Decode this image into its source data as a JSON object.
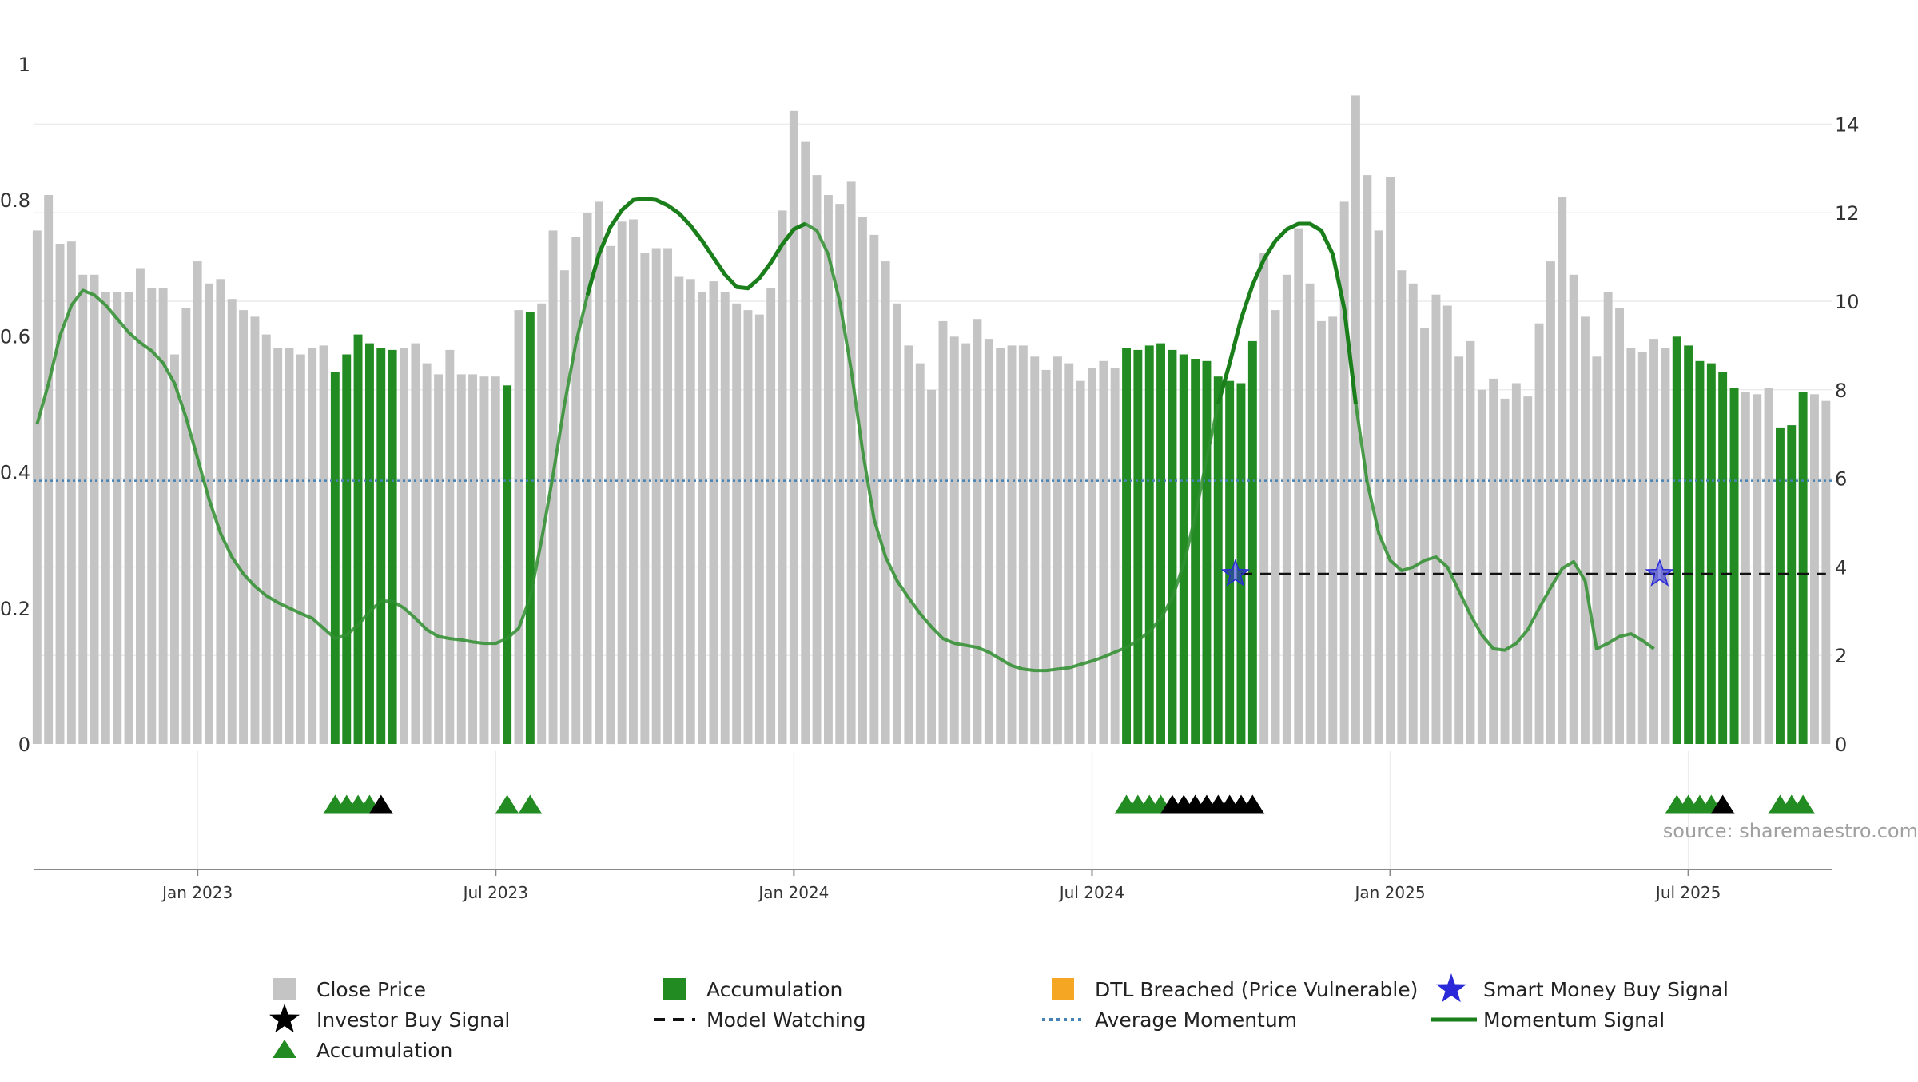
{
  "chart_data": {
    "type": "bar",
    "title": "",
    "source": "source: sharemaestro.com",
    "colors": {
      "close": "#c4c4c4",
      "accumulation": "#228b22",
      "momentum": "#2f8f2f",
      "momentum_strong": "#1a7f1a",
      "average": "#4682b4",
      "smart_money": "#2a2ad8",
      "grid": "#ececec",
      "axis": "#666666",
      "text": "#333333",
      "dtl": "#f5a623",
      "investor": "#000000"
    },
    "left_axis": {
      "ylim": [
        0,
        1
      ],
      "ticks": [
        0,
        0.2,
        0.4,
        0.6,
        0.8,
        1
      ],
      "tick_labels": [
        "0",
        "0.2",
        "0.4",
        "0.6",
        "0.8",
        "1"
      ]
    },
    "right_axis": {
      "ylim": [
        0,
        15.4
      ],
      "ticks": [
        0,
        2,
        4,
        6,
        8,
        10,
        12,
        14
      ],
      "tick_labels": [
        "0",
        "2",
        "4",
        "6",
        "8",
        "10",
        "12",
        "14"
      ]
    },
    "x_axis": {
      "week_range": [
        -0.3,
        156.5
      ],
      "ticks": [
        {
          "label": "Jan 2023",
          "week": 14
        },
        {
          "label": "Jul 2023",
          "week": 40
        },
        {
          "label": "Jan 2024",
          "week": 66
        },
        {
          "label": "Jul 2024",
          "week": 92
        },
        {
          "label": "Jan 2025",
          "week": 118
        },
        {
          "label": "Jul 2025",
          "week": 144
        }
      ]
    },
    "close_prices": [
      11.6,
      12.4,
      11.3,
      11.35,
      10.6,
      10.6,
      10.2,
      10.2,
      10.2,
      10.75,
      10.3,
      10.3,
      8.8,
      9.85,
      10.9,
      10.4,
      10.5,
      10.05,
      9.8,
      9.65,
      9.25,
      8.95,
      8.95,
      8.8,
      8.95,
      9.0,
      8.4,
      8.8,
      9.25,
      9.05,
      8.95,
      8.9,
      8.95,
      9.05,
      8.6,
      8.35,
      8.9,
      8.35,
      8.35,
      8.3,
      8.3,
      8.1,
      9.8,
      9.75,
      9.95,
      11.6,
      10.7,
      11.45,
      12.0,
      12.25,
      11.25,
      11.8,
      11.85,
      11.1,
      11.2,
      11.2,
      10.55,
      10.5,
      10.2,
      10.45,
      10.2,
      9.95,
      9.8,
      9.7,
      10.3,
      12.05,
      14.3,
      13.6,
      12.85,
      12.4,
      12.2,
      12.7,
      11.9,
      11.5,
      10.9,
      9.95,
      9.0,
      8.6,
      8.0,
      9.55,
      9.2,
      9.05,
      9.6,
      9.15,
      8.95,
      9.0,
      9.0,
      8.75,
      8.45,
      8.75,
      8.6,
      8.2,
      8.5,
      8.65,
      8.5,
      8.95,
      8.9,
      9.0,
      9.05,
      8.9,
      8.8,
      8.7,
      8.65,
      8.3,
      8.2,
      8.15,
      9.1,
      11.1,
      9.8,
      10.6,
      11.65,
      10.4,
      9.55,
      9.65,
      12.25,
      14.65,
      12.85,
      11.6,
      12.8,
      10.7,
      10.4,
      9.4,
      10.15,
      9.9,
      8.75,
      9.1,
      8.0,
      8.25,
      7.8,
      8.15,
      7.85,
      9.5,
      10.9,
      12.35,
      10.6,
      9.65,
      8.75,
      10.2,
      9.85,
      8.95,
      8.85,
      9.15,
      8.95,
      9.2,
      9.0,
      8.65,
      8.6,
      8.4,
      8.05,
      7.95,
      7.9,
      8.05,
      7.15,
      7.2,
      7.95,
      7.9,
      7.75
    ],
    "accumulation_weeks": [
      26,
      27,
      28,
      29,
      30,
      31,
      41,
      43,
      95,
      96,
      97,
      98,
      99,
      100,
      101,
      102,
      103,
      104,
      105,
      106,
      143,
      144,
      145,
      146,
      147,
      148,
      152,
      153,
      154
    ],
    "momentum_signal": [
      [
        0,
        0.47
      ],
      [
        1,
        0.53
      ],
      [
        2,
        0.6
      ],
      [
        3,
        0.645
      ],
      [
        4,
        0.667
      ],
      [
        5,
        0.66
      ],
      [
        6,
        0.645
      ],
      [
        7,
        0.625
      ],
      [
        8,
        0.605
      ],
      [
        9,
        0.59
      ],
      [
        10,
        0.578
      ],
      [
        11,
        0.56
      ],
      [
        12,
        0.53
      ],
      [
        13,
        0.48
      ],
      [
        14,
        0.42
      ],
      [
        15,
        0.36
      ],
      [
        16,
        0.31
      ],
      [
        17,
        0.275
      ],
      [
        18,
        0.25
      ],
      [
        19,
        0.232
      ],
      [
        20,
        0.218
      ],
      [
        21,
        0.208
      ],
      [
        22,
        0.2
      ],
      [
        23,
        0.192
      ],
      [
        24,
        0.185
      ],
      [
        25,
        0.17
      ],
      [
        26,
        0.155
      ],
      [
        27,
        0.16
      ],
      [
        28,
        0.175
      ],
      [
        29,
        0.195
      ],
      [
        30,
        0.21
      ],
      [
        31,
        0.21
      ],
      [
        32,
        0.2
      ],
      [
        33,
        0.185
      ],
      [
        34,
        0.168
      ],
      [
        35,
        0.158
      ],
      [
        36,
        0.155
      ],
      [
        37,
        0.153
      ],
      [
        38,
        0.15
      ],
      [
        39,
        0.148
      ],
      [
        40,
        0.148
      ],
      [
        41,
        0.155
      ],
      [
        42,
        0.17
      ],
      [
        43,
        0.215
      ],
      [
        44,
        0.3
      ],
      [
        45,
        0.395
      ],
      [
        46,
        0.5
      ],
      [
        47,
        0.59
      ],
      [
        48,
        0.66
      ],
      [
        49,
        0.72
      ],
      [
        50,
        0.76
      ],
      [
        51,
        0.785
      ],
      [
        52,
        0.8
      ],
      [
        53,
        0.802
      ],
      [
        54,
        0.8
      ],
      [
        55,
        0.792
      ],
      [
        56,
        0.78
      ],
      [
        57,
        0.762
      ],
      [
        58,
        0.74
      ],
      [
        59,
        0.715
      ],
      [
        60,
        0.69
      ],
      [
        61,
        0.672
      ],
      [
        62,
        0.67
      ],
      [
        63,
        0.685
      ],
      [
        64,
        0.708
      ],
      [
        65,
        0.735
      ],
      [
        66,
        0.757
      ],
      [
        67,
        0.765
      ],
      [
        68,
        0.755
      ],
      [
        69,
        0.72
      ],
      [
        70,
        0.65
      ],
      [
        71,
        0.55
      ],
      [
        72,
        0.43
      ],
      [
        73,
        0.33
      ],
      [
        74,
        0.275
      ],
      [
        75,
        0.24
      ],
      [
        76,
        0.215
      ],
      [
        77,
        0.192
      ],
      [
        78,
        0.172
      ],
      [
        79,
        0.155
      ],
      [
        80,
        0.148
      ],
      [
        81,
        0.145
      ],
      [
        82,
        0.142
      ],
      [
        83,
        0.135
      ],
      [
        84,
        0.125
      ],
      [
        85,
        0.115
      ],
      [
        86,
        0.11
      ],
      [
        87,
        0.108
      ],
      [
        88,
        0.108
      ],
      [
        89,
        0.11
      ],
      [
        90,
        0.112
      ],
      [
        91,
        0.117
      ],
      [
        92,
        0.122
      ],
      [
        93,
        0.128
      ],
      [
        94,
        0.135
      ],
      [
        95,
        0.142
      ],
      [
        96,
        0.152
      ],
      [
        97,
        0.165
      ],
      [
        98,
        0.185
      ],
      [
        99,
        0.215
      ],
      [
        100,
        0.265
      ],
      [
        101,
        0.335
      ],
      [
        102,
        0.42
      ],
      [
        103,
        0.5
      ],
      [
        104,
        0.56
      ],
      [
        105,
        0.625
      ],
      [
        106,
        0.675
      ],
      [
        107,
        0.713
      ],
      [
        108,
        0.74
      ],
      [
        109,
        0.757
      ],
      [
        110,
        0.765
      ],
      [
        111,
        0.765
      ],
      [
        112,
        0.755
      ],
      [
        113,
        0.72
      ],
      [
        114,
        0.64
      ],
      [
        115,
        0.5
      ],
      [
        116,
        0.385
      ],
      [
        117,
        0.31
      ],
      [
        118,
        0.27
      ],
      [
        119,
        0.255
      ],
      [
        120,
        0.26
      ],
      [
        121,
        0.27
      ],
      [
        122,
        0.275
      ],
      [
        123,
        0.26
      ],
      [
        124,
        0.225
      ],
      [
        125,
        0.19
      ],
      [
        126,
        0.16
      ],
      [
        127,
        0.14
      ],
      [
        128,
        0.138
      ],
      [
        129,
        0.148
      ],
      [
        130,
        0.168
      ],
      [
        131,
        0.2
      ],
      [
        132,
        0.23
      ],
      [
        133,
        0.258
      ],
      [
        134,
        0.268
      ],
      [
        135,
        0.24
      ],
      [
        136,
        0.14
      ],
      [
        137,
        0.148
      ],
      [
        138,
        0.158
      ],
      [
        139,
        0.162
      ],
      [
        140,
        0.152
      ],
      [
        141,
        0.14
      ]
    ],
    "momentum_strong_ranges": [
      [
        48,
        67
      ],
      [
        103,
        115
      ]
    ],
    "average_momentum": 0.387,
    "smart_money_buy_signals": [
      {
        "week": 104.5,
        "value": 0.25
      },
      {
        "week": 141.5,
        "value": 0.25
      }
    ],
    "model_watching": {
      "start_week": 105,
      "end_week": 156,
      "value": 0.25
    },
    "markers_accumulation": [
      26,
      27,
      28,
      29,
      41,
      43,
      95,
      96,
      97,
      98,
      143,
      144,
      145,
      146,
      152,
      153,
      154
    ],
    "markers_investor": [
      30,
      99,
      100,
      101,
      102,
      103,
      104,
      105,
      106,
      147
    ]
  },
  "legend": {
    "items": [
      {
        "label": "Close Price",
        "symbol": "gray-square"
      },
      {
        "label": "Accumulation",
        "symbol": "green-square"
      },
      {
        "label": "DTL Breached (Price Vulnerable)",
        "symbol": "orange-square"
      },
      {
        "label": "Smart Money Buy Signal",
        "symbol": "blue-star"
      },
      {
        "label": "Investor Buy Signal",
        "symbol": "black-star"
      },
      {
        "label": "Model Watching",
        "symbol": "black-dash"
      },
      {
        "label": "Average Momentum",
        "symbol": "blue-dotted"
      },
      {
        "label": "Momentum Signal",
        "symbol": "green-line"
      },
      {
        "label": "Accumulation",
        "symbol": "green-triangle"
      }
    ]
  }
}
